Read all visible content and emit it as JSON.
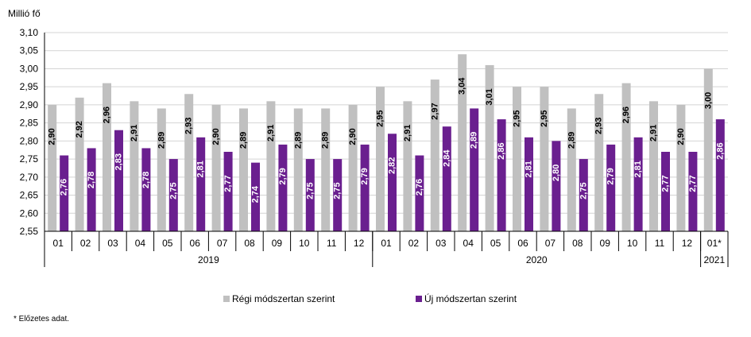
{
  "chart_data": {
    "type": "bar",
    "ylabel": "Millió fő",
    "ylim": [
      2.55,
      3.1
    ],
    "yticks": [
      "2,55",
      "2,60",
      "2,65",
      "2,70",
      "2,75",
      "2,80",
      "2,85",
      "2,90",
      "2,95",
      "3,00",
      "3,05",
      "3,10"
    ],
    "ytick_values": [
      2.55,
      2.6,
      2.65,
      2.7,
      2.75,
      2.8,
      2.85,
      2.9,
      2.95,
      3.0,
      3.05,
      3.1
    ],
    "categories": [
      "01",
      "02",
      "03",
      "04",
      "05",
      "06",
      "07",
      "08",
      "09",
      "10",
      "11",
      "12",
      "01",
      "02",
      "03",
      "04",
      "05",
      "06",
      "07",
      "08",
      "09",
      "10",
      "11",
      "12",
      "01*"
    ],
    "groups": [
      {
        "label": "2019",
        "count": 12
      },
      {
        "label": "2020",
        "count": 12
      },
      {
        "label": "2021",
        "count": 1
      }
    ],
    "series": [
      {
        "name": "Régi módszertan szerint",
        "color": "#c0c0c0",
        "values": [
          2.9,
          2.92,
          2.96,
          2.91,
          2.89,
          2.93,
          2.9,
          2.89,
          2.91,
          2.89,
          2.89,
          2.9,
          2.95,
          2.91,
          2.97,
          3.04,
          3.01,
          2.95,
          2.95,
          2.89,
          2.93,
          2.96,
          2.91,
          2.9,
          3.0
        ],
        "labels": [
          "2,90",
          "2,92",
          "2,96",
          "2,91",
          "2,89",
          "2,93",
          "2,90",
          "2,89",
          "2,91",
          "2,89",
          "2,89",
          "2,90",
          "2,95",
          "2,91",
          "2,97",
          "3,04",
          "3,01",
          "2,95",
          "2,95",
          "2,89",
          "2,93",
          "2,96",
          "2,91",
          "2,90",
          "3,00"
        ]
      },
      {
        "name": "Új módszertan szerint",
        "color": "#6a1f8f",
        "values": [
          2.76,
          2.78,
          2.83,
          2.78,
          2.75,
          2.81,
          2.77,
          2.74,
          2.79,
          2.75,
          2.75,
          2.79,
          2.82,
          2.76,
          2.84,
          2.89,
          2.86,
          2.81,
          2.8,
          2.75,
          2.79,
          2.81,
          2.77,
          2.77,
          2.86
        ],
        "labels": [
          "2,76",
          "2,78",
          "2,83",
          "2,78",
          "2,75",
          "2,81",
          "2,77",
          "2,74",
          "2,79",
          "2,75",
          "2,75",
          "2,79",
          "2,82",
          "2,76",
          "2,84",
          "2,89",
          "2,86",
          "2,81",
          "2,80",
          "2,75",
          "2,79",
          "2,81",
          "2,77",
          "2,77",
          "2,86"
        ]
      }
    ],
    "grid": true,
    "legend": "bottom-center"
  },
  "footnote": "* Előzetes adat."
}
